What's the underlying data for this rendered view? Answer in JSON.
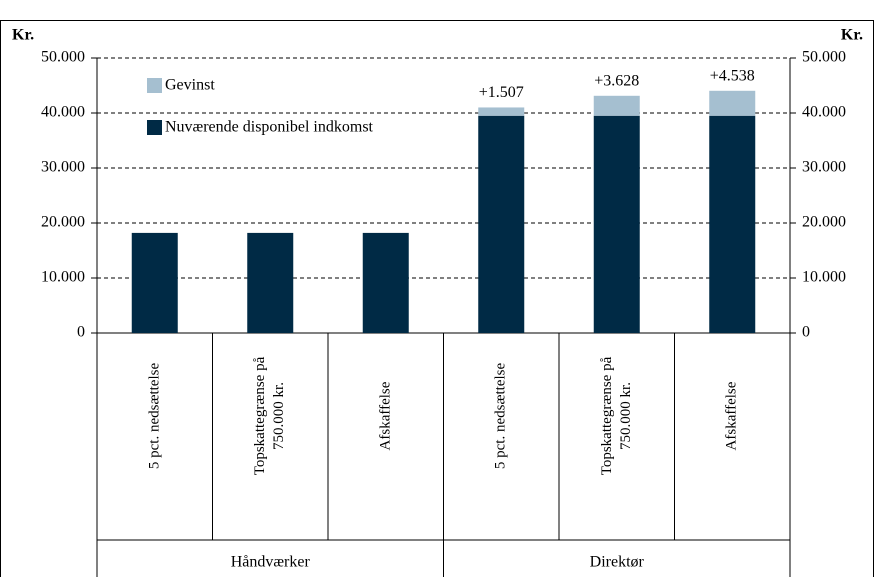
{
  "chart_data": {
    "type": "stacked_bar",
    "y_label": "Kr.",
    "y2_label": "Kr.",
    "categories": [
      "5 pct. nedsættelse",
      "Topskattegrænse på 750.000 kr.",
      "Afskaffelse",
      "5 pct. nedsættelse",
      "Topskattegrænse på 750.000 kr.",
      "Afskaffelse"
    ],
    "groups": [
      {
        "name": "Håndværker",
        "size": 3
      },
      {
        "name": "Direktør",
        "size": 3
      }
    ],
    "series": [
      {
        "name": "Nuværende disponibel indkomst",
        "color": "#002a45",
        "values": [
          18200,
          18200,
          18200,
          39500,
          39500,
          39500
        ]
      },
      {
        "name": "Gevinst",
        "color": "#a5bfd0",
        "values": [
          null,
          null,
          null,
          1507,
          3628,
          4538
        ],
        "value_labels": [
          null,
          null,
          null,
          "+1.507",
          "+3.628",
          "+4.538"
        ]
      }
    ],
    "ylim": [
      0,
      50000
    ],
    "yticks": [
      0,
      {
        "value": 10000,
        "label": "10.000"
      },
      {
        "value": 20000,
        "label": "20.000"
      },
      {
        "value": 30000,
        "label": "30.000"
      },
      {
        "value": 40000,
        "label": "40.000"
      },
      {
        "value": 50000,
        "label": "50.000"
      }
    ],
    "y2lim": [
      0,
      50000
    ],
    "y2ticks": [
      0,
      {
        "value": 10000,
        "label": "10.000"
      },
      {
        "value": 20000,
        "label": "20.000"
      },
      {
        "value": 30000,
        "label": "30.000"
      },
      {
        "value": 40000,
        "label": "40.000"
      },
      {
        "value": 50000,
        "label": "50.000"
      }
    ],
    "grid": true,
    "legend": "upper left"
  }
}
